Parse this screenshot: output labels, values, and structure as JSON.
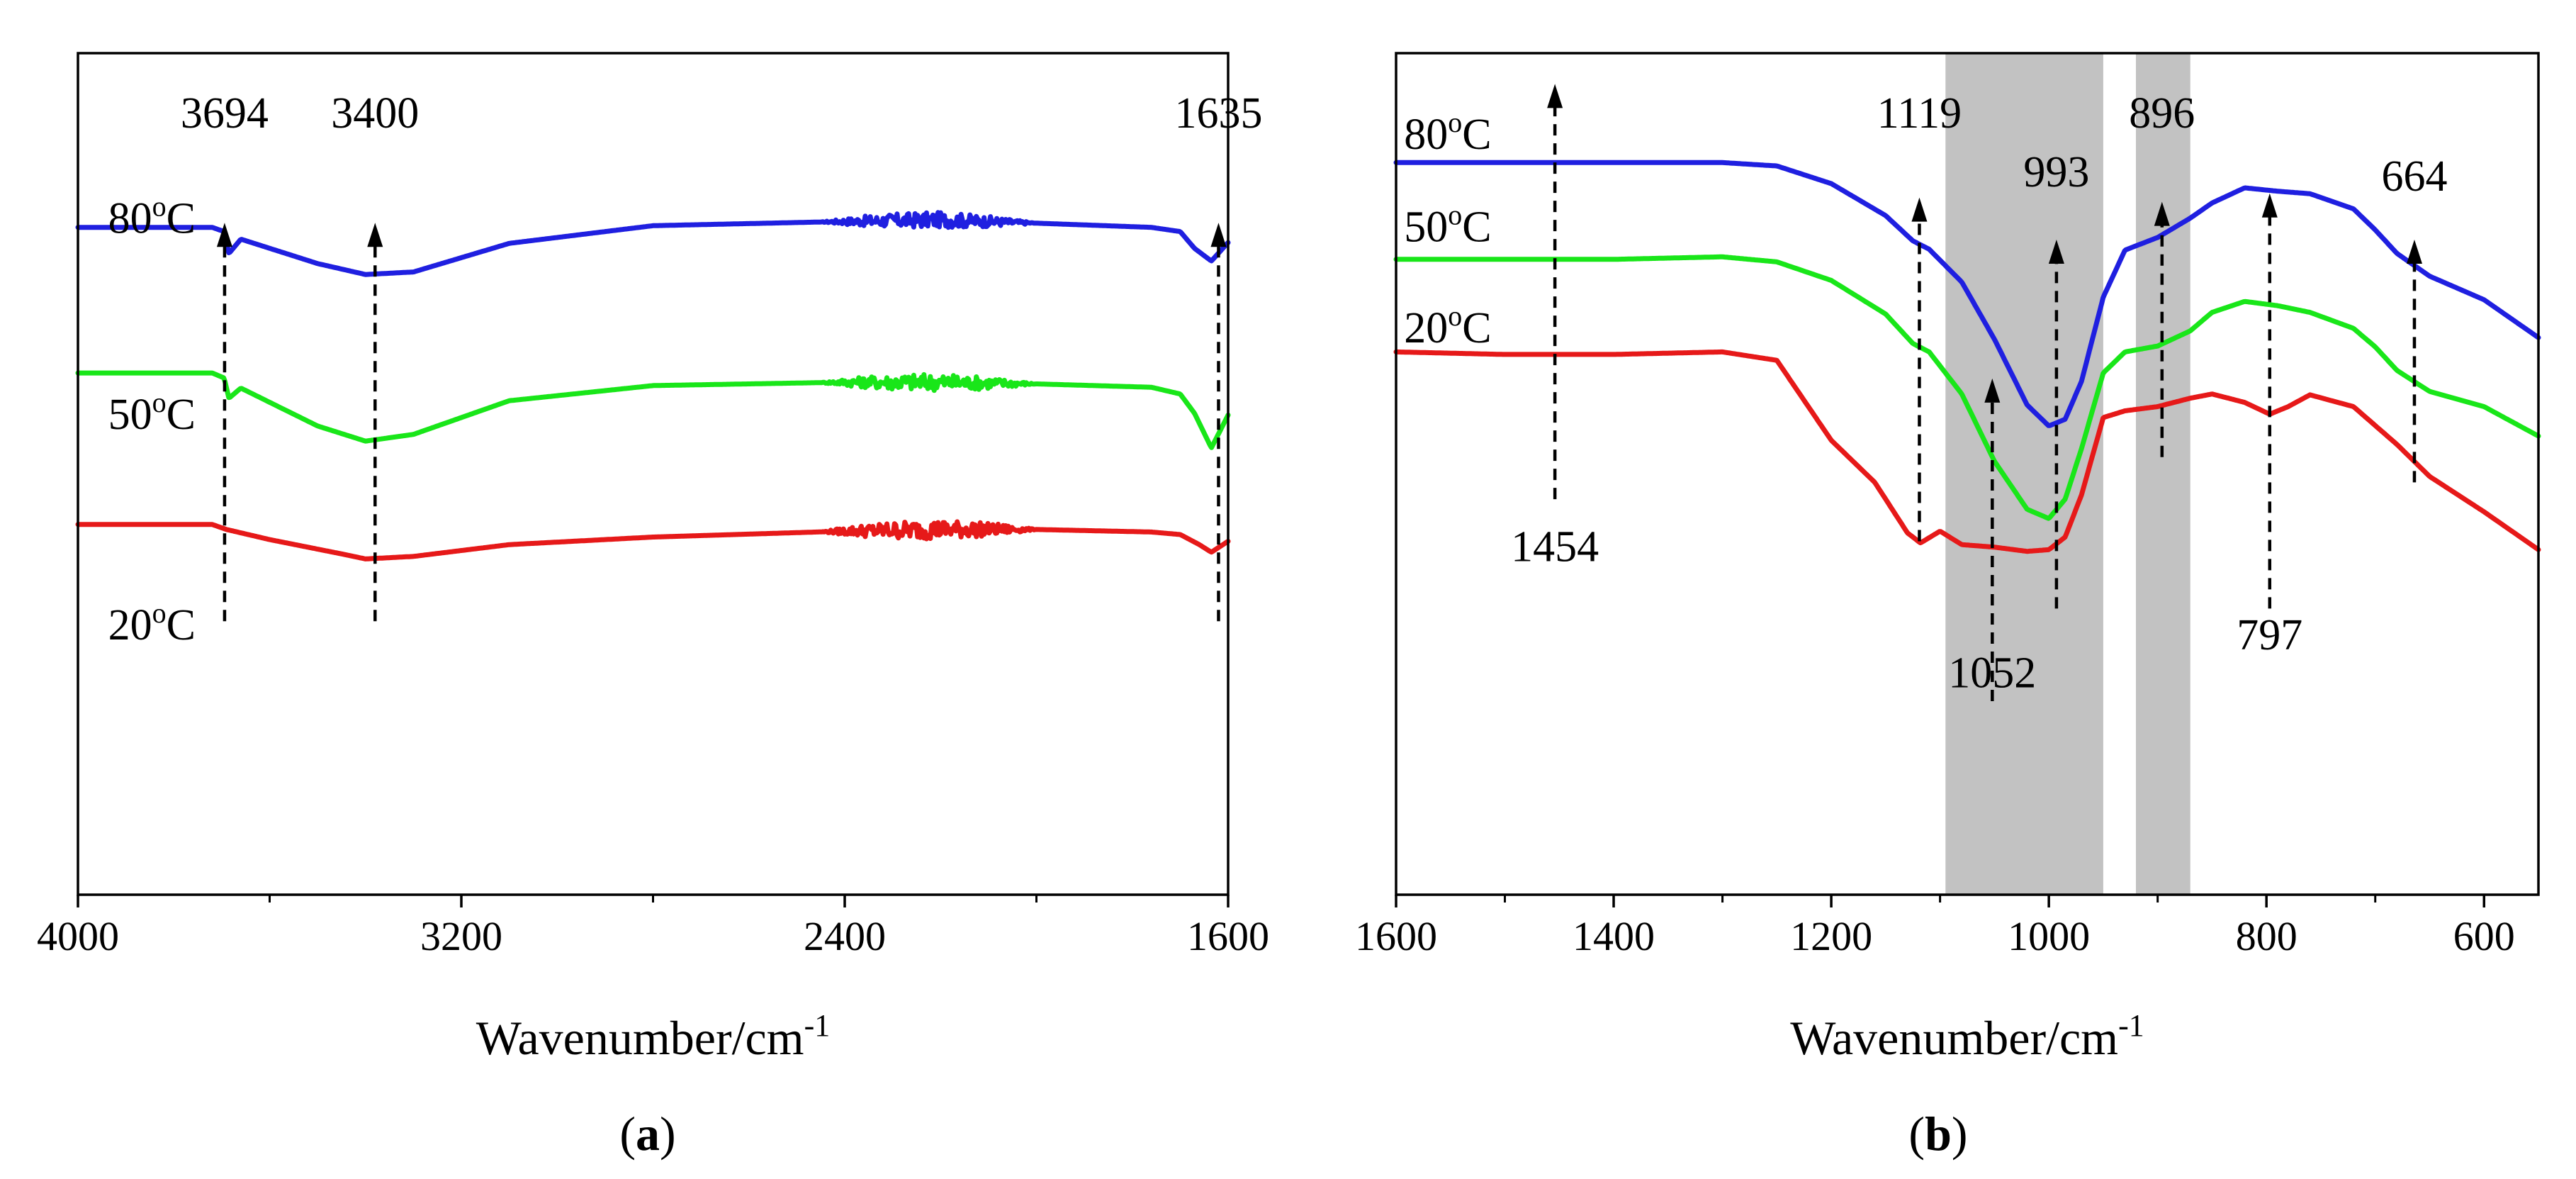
{
  "figure": {
    "panel_labels": [
      "a",
      "b"
    ]
  },
  "chart_data": [
    {
      "type": "line",
      "panel": "a",
      "xlabel": "Wavenumber/cm",
      "xlabel_sup": "-1",
      "ylabel": "",
      "xlim": [
        4000,
        1600
      ],
      "ylim": [
        0,
        1
      ],
      "xticks": [
        4000,
        3200,
        2400,
        1600
      ],
      "xtick_labels": [
        "4000",
        "3200",
        "2400",
        "1600"
      ],
      "minor_xticks": [
        3600,
        2800,
        2000
      ],
      "grid": false,
      "series": [
        {
          "name": "80°C",
          "label": "80",
          "color": "#1f1fe0",
          "x": [
            4000,
            3720,
            3695,
            3685,
            3660,
            3500,
            3400,
            3300,
            3100,
            2800,
            2400,
            2300,
            2200,
            2000,
            1760,
            1700,
            1670,
            1635,
            1600
          ],
          "y": [
            0.793,
            0.793,
            0.788,
            0.762,
            0.779,
            0.75,
            0.737,
            0.74,
            0.774,
            0.795,
            0.8,
            0.801,
            0.802,
            0.798,
            0.793,
            0.788,
            0.768,
            0.753,
            0.775
          ],
          "noise": [
            [
              2450,
              2000,
              0.009
            ]
          ]
        },
        {
          "name": "50°C",
          "label": "50",
          "color": "#19e619",
          "x": [
            4000,
            3720,
            3695,
            3685,
            3660,
            3500,
            3400,
            3300,
            3100,
            2800,
            2400,
            2200,
            2000,
            1760,
            1700,
            1670,
            1635,
            1600
          ],
          "y": [
            0.62,
            0.62,
            0.614,
            0.59,
            0.602,
            0.557,
            0.539,
            0.547,
            0.587,
            0.605,
            0.609,
            0.609,
            0.607,
            0.603,
            0.595,
            0.572,
            0.531,
            0.57
          ],
          "noise": [
            [
              2450,
              2000,
              0.01
            ]
          ]
        },
        {
          "name": "20°C",
          "label": "20",
          "color": "#e61919",
          "x": [
            4000,
            3720,
            3690,
            3600,
            3450,
            3400,
            3300,
            3100,
            2800,
            2400,
            2200,
            2000,
            1760,
            1700,
            1660,
            1635,
            1600
          ],
          "y": [
            0.44,
            0.44,
            0.434,
            0.422,
            0.405,
            0.399,
            0.402,
            0.416,
            0.425,
            0.432,
            0.434,
            0.434,
            0.431,
            0.428,
            0.416,
            0.407,
            0.42
          ],
          "noise": [
            [
              2450,
              2000,
              0.011
            ]
          ]
        }
      ],
      "annotations": [
        {
          "text": "3694",
          "x": 3694,
          "y_from": 0.325,
          "y_to": 0.79,
          "label_y": 0.93
        },
        {
          "text": "3400",
          "x": 3380,
          "y_from": 0.325,
          "y_to": 0.79,
          "label_y": 0.93
        },
        {
          "text": "1635",
          "x": 1620,
          "y_from": 0.325,
          "y_to": 0.79,
          "label_y": 0.93
        }
      ],
      "temp_labels": [
        {
          "text": "80",
          "x": 3940,
          "y": 0.805
        },
        {
          "text": "50",
          "x": 3940,
          "y": 0.572
        },
        {
          "text": "20",
          "x": 3940,
          "y": 0.322
        }
      ]
    },
    {
      "type": "line",
      "panel": "b",
      "xlabel": "Wavenumber/cm",
      "xlabel_sup": "-1",
      "ylabel": "",
      "xlim": [
        1600,
        550
      ],
      "ylim": [
        0,
        1
      ],
      "xticks": [
        1600,
        1400,
        1200,
        1000,
        800,
        600
      ],
      "xtick_labels": [
        "1600",
        "1400",
        "1200",
        "1000",
        "800",
        "600"
      ],
      "minor_xticks": [
        1500,
        1300,
        1100,
        900,
        700
      ],
      "grid": false,
      "shaded_regions": [
        [
          1095,
          950
        ],
        [
          920,
          870
        ]
      ],
      "series": [
        {
          "name": "80°C",
          "label": "80",
          "color": "#1f1fe0",
          "x": [
            1600,
            1500,
            1400,
            1300,
            1250,
            1200,
            1150,
            1125,
            1110,
            1080,
            1050,
            1020,
            1000,
            985,
            970,
            950,
            930,
            900,
            870,
            850,
            820,
            790,
            760,
            720,
            700,
            680,
            650,
            600,
            550
          ],
          "y": [
            0.87,
            0.87,
            0.87,
            0.87,
            0.866,
            0.845,
            0.807,
            0.777,
            0.767,
            0.728,
            0.66,
            0.582,
            0.557,
            0.565,
            0.61,
            0.71,
            0.766,
            0.781,
            0.804,
            0.822,
            0.84,
            0.836,
            0.833,
            0.815,
            0.79,
            0.762,
            0.735,
            0.707,
            0.662
          ]
        },
        {
          "name": "50°C",
          "label": "50",
          "color": "#19e619",
          "x": [
            1600,
            1500,
            1400,
            1300,
            1250,
            1200,
            1150,
            1125,
            1110,
            1080,
            1050,
            1020,
            1000,
            985,
            970,
            950,
            930,
            900,
            870,
            850,
            820,
            790,
            760,
            720,
            700,
            680,
            650,
            600,
            550
          ],
          "y": [
            0.755,
            0.755,
            0.755,
            0.758,
            0.752,
            0.73,
            0.69,
            0.655,
            0.645,
            0.595,
            0.515,
            0.458,
            0.447,
            0.47,
            0.53,
            0.62,
            0.645,
            0.652,
            0.67,
            0.692,
            0.705,
            0.7,
            0.692,
            0.673,
            0.651,
            0.623,
            0.598,
            0.58,
            0.545
          ]
        },
        {
          "name": "20°C",
          "label": "20",
          "color": "#e61919",
          "x": [
            1600,
            1500,
            1400,
            1300,
            1250,
            1200,
            1160,
            1130,
            1118,
            1100,
            1080,
            1050,
            1020,
            1000,
            985,
            970,
            950,
            930,
            900,
            870,
            850,
            820,
            797,
            780,
            760,
            720,
            680,
            650,
            600,
            550
          ],
          "y": [
            0.645,
            0.642,
            0.642,
            0.645,
            0.635,
            0.54,
            0.49,
            0.43,
            0.418,
            0.432,
            0.416,
            0.413,
            0.408,
            0.41,
            0.425,
            0.475,
            0.567,
            0.575,
            0.58,
            0.59,
            0.595,
            0.585,
            0.571,
            0.58,
            0.594,
            0.58,
            0.535,
            0.497,
            0.455,
            0.41
          ]
        }
      ],
      "annotations": [
        {
          "text": "1454",
          "x": 1454,
          "y_from": 0.47,
          "y_to": 0.955,
          "label_y": 0.415,
          "dir": "up"
        },
        {
          "text": "1119",
          "x": 1119,
          "y_from": 0.42,
          "y_to": 0.82,
          "label_y": 0.93,
          "dir": "up"
        },
        {
          "text": "1052",
          "x": 1052,
          "y_from": 0.23,
          "y_to": 0.605,
          "label_y": 0.265,
          "dir": "up"
        },
        {
          "text": "993",
          "x": 993,
          "y_from": 0.34,
          "y_to": 0.77,
          "label_y": 0.86,
          "dir": "up"
        },
        {
          "text": "896",
          "x": 896,
          "y_from": 0.52,
          "y_to": 0.815,
          "label_y": 0.93,
          "dir": "up"
        },
        {
          "text": "797",
          "x": 797,
          "y_from": 0.34,
          "y_to": 0.825,
          "label_y": 0.31,
          "dir": "up"
        },
        {
          "text": "664",
          "x": 664,
          "y_from": 0.49,
          "y_to": 0.77,
          "label_y": 0.855,
          "dir": "up"
        }
      ],
      "temp_labels": [
        {
          "text": "80",
          "x": 1594,
          "y": 0.905
        },
        {
          "text": "50",
          "x": 1594,
          "y": 0.795
        },
        {
          "text": "20",
          "x": 1594,
          "y": 0.675
        }
      ]
    }
  ]
}
